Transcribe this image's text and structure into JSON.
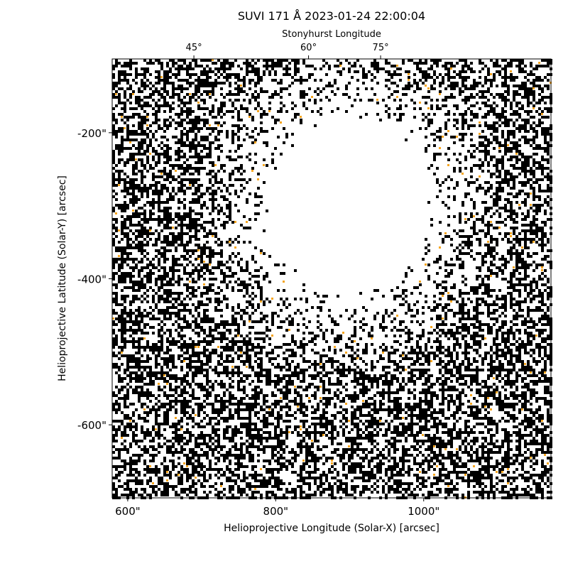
{
  "chart_data": {
    "type": "image",
    "title": "SUVI 171 Å 2023-01-24 22:00:04",
    "x_label": "Helioprojective Longitude (Solar-X) [arcsec]",
    "y_label": "Helioprojective Latitude (Solar-Y) [arcsec]",
    "x2_label": "Stonyhurst Longitude",
    "xlim": [
      579,
      1172
    ],
    "ylim": [
      -700,
      -99
    ],
    "xticks": [
      {
        "value": 600,
        "label": "600\""
      },
      {
        "value": 800,
        "label": "800\""
      },
      {
        "value": 1000,
        "label": "1000\""
      }
    ],
    "yticks": [
      {
        "value": -200,
        "label": "-200\""
      },
      {
        "value": -400,
        "label": "-400\""
      },
      {
        "value": -600,
        "label": "-600\""
      }
    ],
    "x2ticks": [
      {
        "value": 45,
        "label": "45°"
      },
      {
        "value": 60,
        "label": "60°"
      },
      {
        "value": 75,
        "label": "75°"
      }
    ]
  }
}
